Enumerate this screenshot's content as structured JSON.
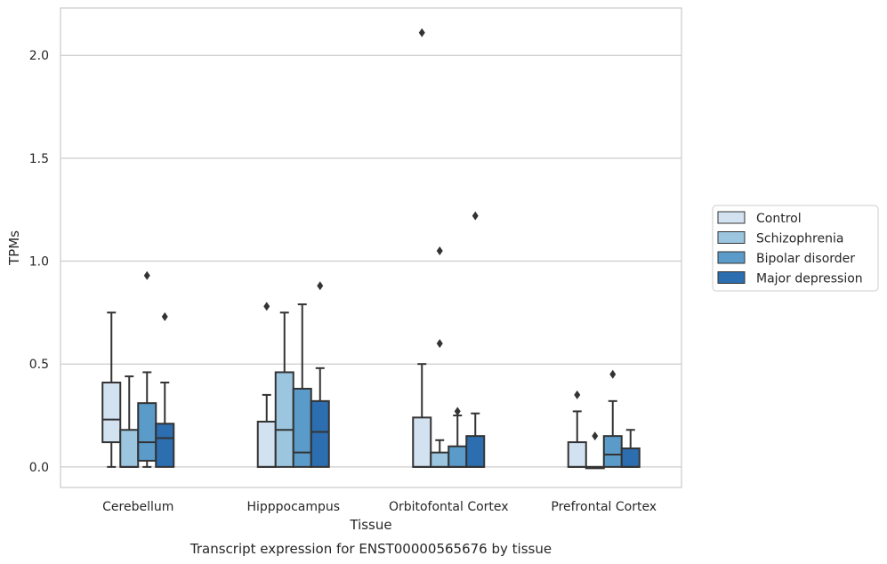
{
  "chart_data": {
    "type": "box",
    "title": "",
    "caption": "Transcript expression for ENST00000565676 by tissue",
    "xlabel": "Tissue",
    "ylabel": "TPMs",
    "ylim": [
      -0.1,
      2.23
    ],
    "yticks": [
      0.0,
      0.5,
      1.0,
      1.5,
      2.0
    ],
    "ytick_labels": [
      "0.0",
      "0.5",
      "1.0",
      "1.5",
      "2.0"
    ],
    "grid": "horizontal",
    "legend_position": "right",
    "categories": [
      "Cerebellum",
      "Hipppocampus",
      "Orbitofontal Cortex",
      "Prefrontal Cortex"
    ],
    "series": [
      {
        "name": "Control",
        "color": "#d2e2f1",
        "boxes": [
          {
            "whisker_low": 0.0,
            "q1": 0.12,
            "median": 0.23,
            "q3": 0.41,
            "whisker_high": 0.75,
            "outliers": []
          },
          {
            "whisker_low": 0.0,
            "q1": 0.0,
            "median": 0.0,
            "q3": 0.22,
            "whisker_high": 0.35,
            "outliers": [
              0.78
            ]
          },
          {
            "whisker_low": 0.0,
            "q1": 0.0,
            "median": 0.0,
            "q3": 0.24,
            "whisker_high": 0.5,
            "outliers": [
              2.11
            ]
          },
          {
            "whisker_low": 0.0,
            "q1": 0.0,
            "median": 0.0,
            "q3": 0.12,
            "whisker_high": 0.27,
            "outliers": [
              0.35
            ]
          }
        ]
      },
      {
        "name": "Schizophrenia",
        "color": "#9cc6e0",
        "boxes": [
          {
            "whisker_low": 0.0,
            "q1": 0.0,
            "median": 0.0,
            "q3": 0.18,
            "whisker_high": 0.44,
            "outliers": []
          },
          {
            "whisker_low": 0.0,
            "q1": 0.0,
            "median": 0.18,
            "q3": 0.46,
            "whisker_high": 0.75,
            "outliers": []
          },
          {
            "whisker_low": 0.0,
            "q1": 0.0,
            "median": 0.0,
            "q3": 0.07,
            "whisker_high": 0.13,
            "outliers": [
              0.6,
              1.05
            ]
          },
          {
            "whisker_low": 0.0,
            "q1": 0.0,
            "median": 0.0,
            "q3": 0.0,
            "whisker_high": 0.0,
            "outliers": [
              0.15
            ]
          }
        ]
      },
      {
        "name": "Bipolar disorder",
        "color": "#5b9bc9",
        "boxes": [
          {
            "whisker_low": 0.0,
            "q1": 0.03,
            "median": 0.12,
            "q3": 0.31,
            "whisker_high": 0.46,
            "outliers": [
              0.93
            ]
          },
          {
            "whisker_low": 0.0,
            "q1": 0.0,
            "median": 0.07,
            "q3": 0.38,
            "whisker_high": 0.79,
            "outliers": []
          },
          {
            "whisker_low": 0.0,
            "q1": 0.0,
            "median": 0.0,
            "q3": 0.1,
            "whisker_high": 0.25,
            "outliers": [
              0.27
            ]
          },
          {
            "whisker_low": 0.0,
            "q1": 0.0,
            "median": 0.06,
            "q3": 0.15,
            "whisker_high": 0.32,
            "outliers": [
              0.45
            ]
          }
        ]
      },
      {
        "name": "Major depression",
        "color": "#2c6eaf",
        "boxes": [
          {
            "whisker_low": 0.0,
            "q1": 0.0,
            "median": 0.14,
            "q3": 0.21,
            "whisker_high": 0.41,
            "outliers": [
              0.73
            ]
          },
          {
            "whisker_low": 0.0,
            "q1": 0.0,
            "median": 0.17,
            "q3": 0.32,
            "whisker_high": 0.48,
            "outliers": [
              0.88
            ]
          },
          {
            "whisker_low": 0.0,
            "q1": 0.0,
            "median": 0.0,
            "q3": 0.15,
            "whisker_high": 0.26,
            "outliers": [
              1.22
            ]
          },
          {
            "whisker_low": 0.0,
            "q1": 0.0,
            "median": 0.0,
            "q3": 0.09,
            "whisker_high": 0.18,
            "outliers": []
          }
        ]
      }
    ]
  }
}
